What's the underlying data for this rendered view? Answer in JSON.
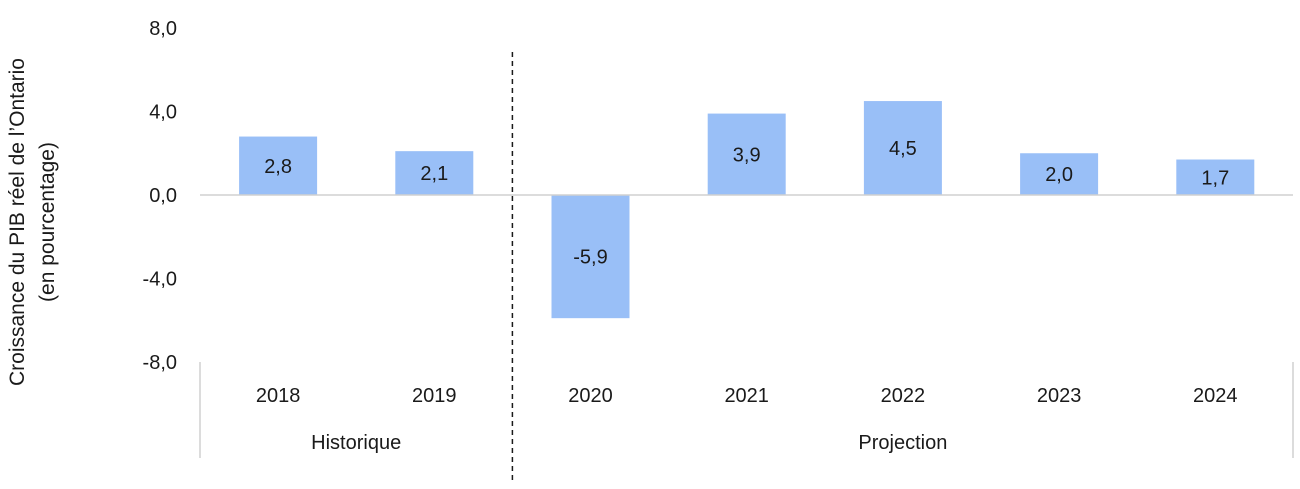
{
  "chart_data": {
    "type": "bar",
    "ylabel_lines": [
      "Croissance du PIB réel de l’Ontario",
      "(en pourcentage)"
    ],
    "categories": [
      "2018",
      "2019",
      "2020",
      "2021",
      "2022",
      "2023",
      "2024"
    ],
    "values": [
      2.8,
      2.1,
      -5.9,
      3.9,
      4.5,
      2.0,
      1.7
    ],
    "value_labels": [
      "2,8",
      "2,1",
      "-5,9",
      "3,9",
      "4,5",
      "2,0",
      "1,7"
    ],
    "ylim": [
      -8.0,
      8.0
    ],
    "yticks": [
      8.0,
      4.0,
      0.0,
      -4.0,
      -8.0
    ],
    "ytick_labels": [
      "8,0",
      "4,0",
      "0,0",
      "-4,0",
      "-8,0"
    ],
    "groups": [
      {
        "label": "Historique",
        "categories": [
          "2018",
          "2019"
        ]
      },
      {
        "label": "Projection",
        "categories": [
          "2020",
          "2021",
          "2022",
          "2023",
          "2024"
        ]
      }
    ],
    "bar_color": "#99bff7",
    "grid": false
  }
}
